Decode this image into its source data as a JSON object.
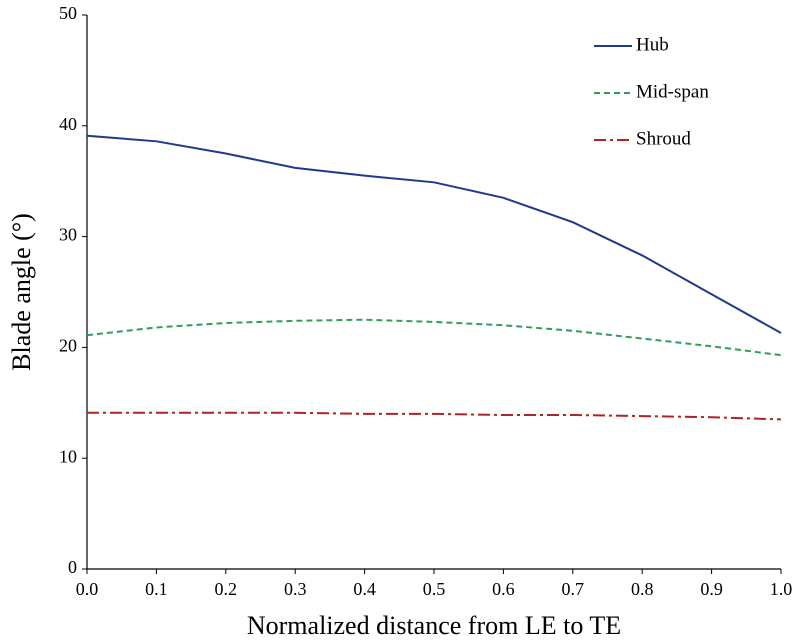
{
  "chart_data": {
    "type": "line",
    "x_label": "Normalized distance from LE to TE",
    "y_label": "Blade angle (°)",
    "x": [
      0,
      0.1,
      0.2,
      0.3,
      0.4,
      0.5,
      0.6,
      0.7,
      0.8,
      0.9,
      1.0
    ],
    "series": [
      {
        "name": "Hub",
        "color": "#1f3a8a",
        "style": "solid",
        "values": [
          39.1,
          38.6,
          37.5,
          36.2,
          35.5,
          34.9,
          33.5,
          31.3,
          28.3,
          24.8,
          21.3
        ]
      },
      {
        "name": "Mid-span",
        "color": "#2e9e5b",
        "style": "dashed",
        "values": [
          21.1,
          21.8,
          22.2,
          22.4,
          22.5,
          22.3,
          22.0,
          21.5,
          20.8,
          20.1,
          19.3
        ]
      },
      {
        "name": "Shroud",
        "color": "#b22222",
        "style": "dashdot",
        "values": [
          14.1,
          14.1,
          14.1,
          14.1,
          14.0,
          14.0,
          13.9,
          13.9,
          13.8,
          13.7,
          13.5
        ]
      }
    ],
    "xlim": [
      0,
      1
    ],
    "xticks": [
      {
        "value": 0,
        "label": "0.0"
      },
      0.1,
      0.2,
      0.3,
      0.4,
      0.5,
      0.6,
      0.7,
      0.8,
      0.9,
      {
        "value": 1,
        "label": "1.0"
      }
    ],
    "ylim": [
      0,
      50
    ],
    "yticks": [
      0,
      10,
      20,
      30,
      40,
      50
    ],
    "grid": false,
    "legend": "upper right"
  }
}
